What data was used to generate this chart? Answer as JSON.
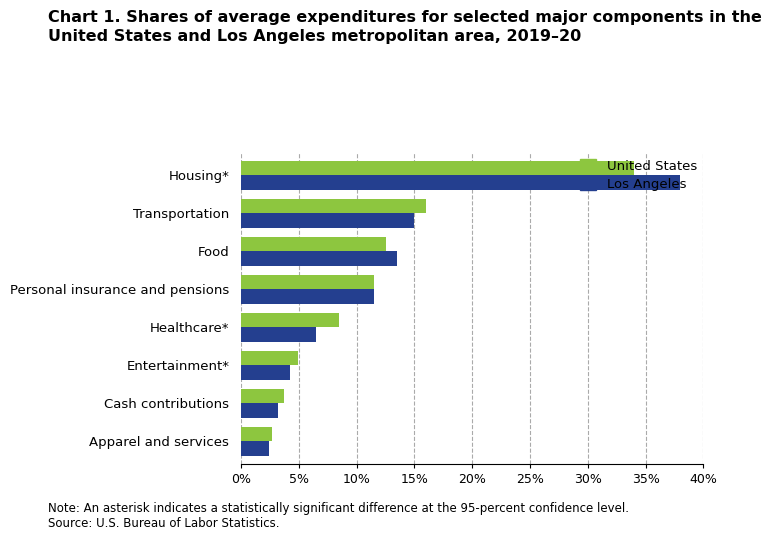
{
  "title_line1": "Chart 1. Shares of average expenditures for selected major components in the",
  "title_line2": "United States and Los Angeles metropolitan area, 2019–20",
  "categories": [
    "Housing*",
    "Transportation",
    "Food",
    "Personal insurance and pensions",
    "Healthcare*",
    "Entertainment*",
    "Cash contributions",
    "Apparel and services"
  ],
  "us_values": [
    34.0,
    16.0,
    12.5,
    11.5,
    8.5,
    4.9,
    3.7,
    2.7
  ],
  "la_values": [
    38.0,
    15.0,
    13.5,
    11.5,
    6.5,
    4.2,
    3.2,
    2.4
  ],
  "us_color": "#8DC63F",
  "la_color": "#243F8F",
  "legend_labels": [
    "United States",
    "Los Angeles"
  ],
  "xlim": [
    0,
    40
  ],
  "xtick_values": [
    0,
    5,
    10,
    15,
    20,
    25,
    30,
    35,
    40
  ],
  "xtick_labels": [
    "0%",
    "5%",
    "10%",
    "15%",
    "20%",
    "25%",
    "30%",
    "35%",
    "40%"
  ],
  "note_line1": "Note: An asterisk indicates a statistically significant difference at the 95-percent confidence level.",
  "note_line2": "Source: U.S. Bureau of Labor Statistics.",
  "background_color": "#ffffff",
  "grid_color": "#aaaaaa",
  "title_fontsize": 11.5,
  "label_fontsize": 9.5,
  "tick_fontsize": 9,
  "note_fontsize": 8.5,
  "bar_height": 0.38
}
